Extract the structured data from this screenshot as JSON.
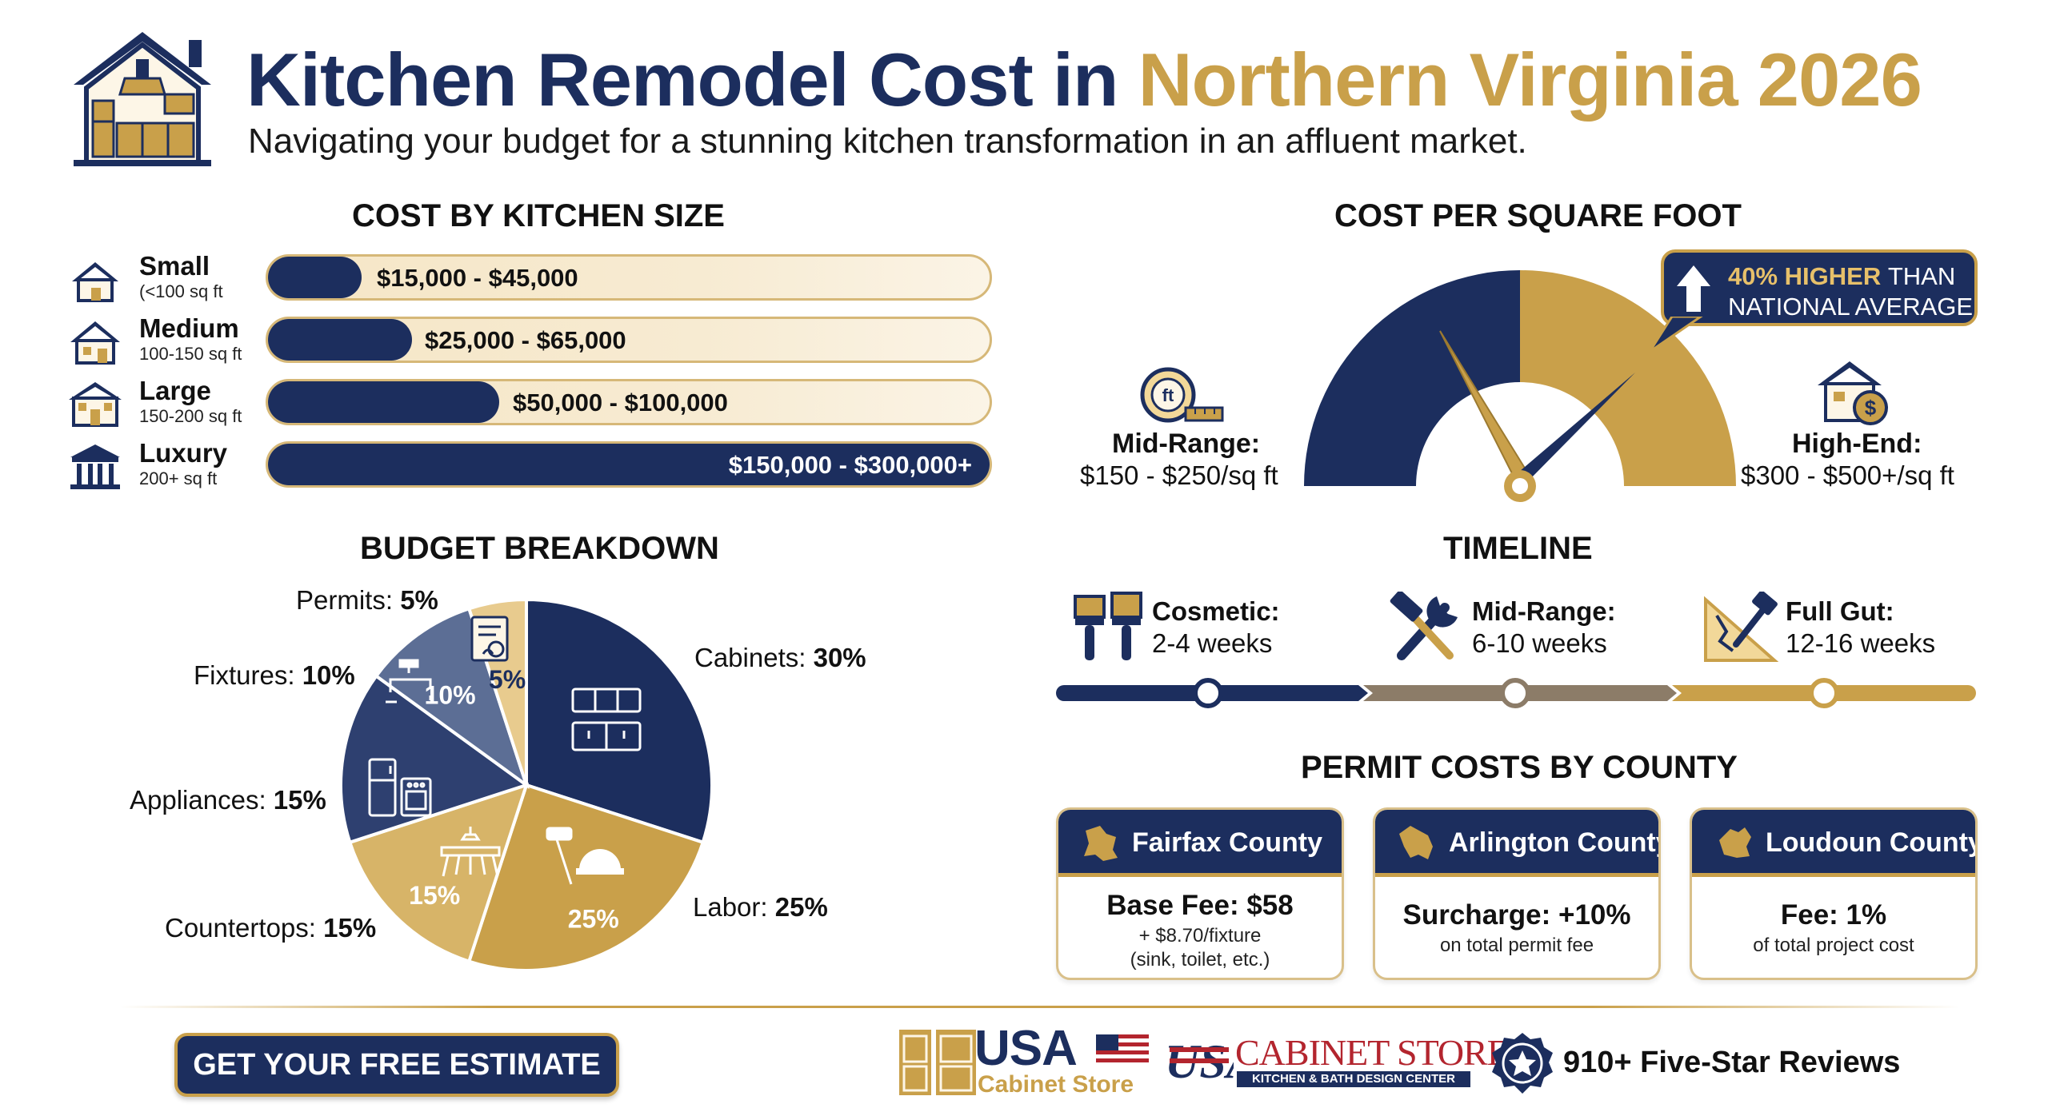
{
  "header": {
    "title_navy": "Kitchen Remodel Cost in",
    "title_gold": "Northern Virginia 2026",
    "subtitle": "Navigating your budget for a stunning kitchen transformation in an affluent market.",
    "icon": "house-kitchen-icon"
  },
  "colors": {
    "navy": "#1c2e5e",
    "gold": "#c9a04a",
    "slate": "#5c6e95",
    "sand": "#e8cb8e",
    "taupe": "#8c7c68"
  },
  "cost_by_size": {
    "heading": "COST BY KITCHEN SIZE",
    "rows": [
      {
        "name": "Small",
        "range": "(<100 sq ft",
        "cost": "$15,000 - $45,000",
        "fill_fraction": 0.13,
        "icon": "small-house-icon"
      },
      {
        "name": "Medium",
        "range": "100-150 sq ft",
        "cost": "$25,000 - $65,000",
        "fill_fraction": 0.2,
        "icon": "medium-house-icon"
      },
      {
        "name": "Large",
        "range": "150-200 sq ft",
        "cost": "$50,000 - $100,000",
        "fill_fraction": 0.32,
        "icon": "large-house-icon"
      },
      {
        "name": "Luxury",
        "range": "200+ sq ft",
        "cost": "$150,000 - $300,000+",
        "fill_fraction": 1.0,
        "icon": "mansion-icon"
      }
    ]
  },
  "cost_per_sqft": {
    "heading": "COST PER SQUARE FOOT",
    "callout_highlight": "40% HIGHER",
    "callout_rest": "THAN",
    "callout_line2": "NATIONAL AVERAGE",
    "mid_label": "Mid-Range:",
    "mid_value": "$150 - $250/sq ft",
    "high_label": "High-End:",
    "high_value": "$300 - $500+/sq ft",
    "mid_icon": "tape-measure-icon",
    "high_icon": "house-dollar-icon"
  },
  "budget_breakdown": {
    "heading": "BUDGET BREAKDOWN",
    "slices": [
      {
        "name": "Cabinets",
        "pct": 30,
        "label": "Cabinets:",
        "value": "30%",
        "inner": "",
        "color": "#1c2e5e",
        "icon": "cabinets-icon"
      },
      {
        "name": "Labor",
        "pct": 25,
        "label": "Labor:",
        "value": "25%",
        "inner": "25%",
        "color": "#c9a04a",
        "icon": "tools-helmet-icon"
      },
      {
        "name": "Countertops",
        "pct": 15,
        "label": "Countertops:",
        "value": "15%",
        "inner": "15%",
        "color": "#d7b468",
        "icon": "counter-icon"
      },
      {
        "name": "Appliances",
        "pct": 15,
        "label": "Appliances:",
        "value": "15%",
        "inner": "",
        "color": "#2e4070",
        "icon": "appliances-icon"
      },
      {
        "name": "Fixtures",
        "pct": 10,
        "label": "Fixtures:",
        "value": "10%",
        "inner": "10%",
        "color": "#5c6e95",
        "icon": "faucet-icon"
      },
      {
        "name": "Permits",
        "pct": 5,
        "label": "Permits:",
        "value": "5%",
        "inner": "5%",
        "color": "#e8cb8e",
        "icon": "permit-document-icon"
      }
    ]
  },
  "timeline": {
    "heading": "TIMELINE",
    "stages": [
      {
        "name": "Cosmetic:",
        "weeks": "2-4 weeks",
        "icon": "paint-brushes-icon",
        "color": "#1c2e5e"
      },
      {
        "name": "Mid-Range:",
        "weeks": "6-10 weeks",
        "icon": "wrench-hammer-icon",
        "color": "#8c7c68"
      },
      {
        "name": "Full Gut:",
        "weeks": "12-16 weeks",
        "icon": "demolition-icon",
        "color": "#c9a04a"
      }
    ]
  },
  "permits": {
    "heading": "PERMIT COSTS BY COUNTY",
    "cards": [
      {
        "title": "Fairfax County",
        "main": "Base Fee: $58",
        "sub1": "+ $8.70/fixture",
        "sub2": "(sink, toilet, etc.)"
      },
      {
        "title": "Arlington County",
        "main": "Surcharge: +10%",
        "sub1": "on total permit fee",
        "sub2": ""
      },
      {
        "title": "Loudoun County",
        "main": "Fee: 1%",
        "sub1": "of total project cost",
        "sub2": ""
      }
    ]
  },
  "footer": {
    "cta": "GET YOUR FREE ESTIMATE",
    "logo_main": "USA",
    "logo_sub": "Cabinet Store",
    "store_mark": "USA",
    "store_name": "CABINET STORE",
    "store_tagline": "KITCHEN & BATH DESIGN CENTER",
    "reviews": "910+ Five-Star Reviews"
  }
}
